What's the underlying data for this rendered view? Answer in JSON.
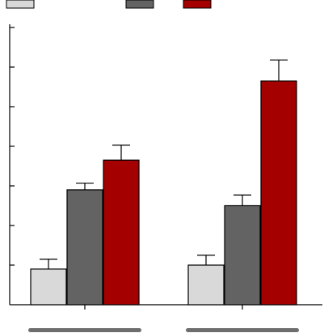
{
  "chart_data": {
    "type": "bar",
    "title": "",
    "xlabel": "",
    "ylabel": "",
    "categories": [
      "",
      ""
    ],
    "ylim": [
      0,
      7
    ],
    "grid": false,
    "legend_placement": "top-left",
    "series": [
      {
        "color": "#d9d9d9",
        "values": [
          0.9,
          1.0
        ],
        "errors": [
          0.25,
          0.25
        ]
      },
      {
        "color": "#636363",
        "values": [
          2.9,
          2.5
        ],
        "errors": [
          0.17,
          0.27
        ]
      },
      {
        "color": "#a50000",
        "values": [
          3.65,
          5.65
        ],
        "errors": [
          0.38,
          0.53
        ]
      }
    ]
  }
}
